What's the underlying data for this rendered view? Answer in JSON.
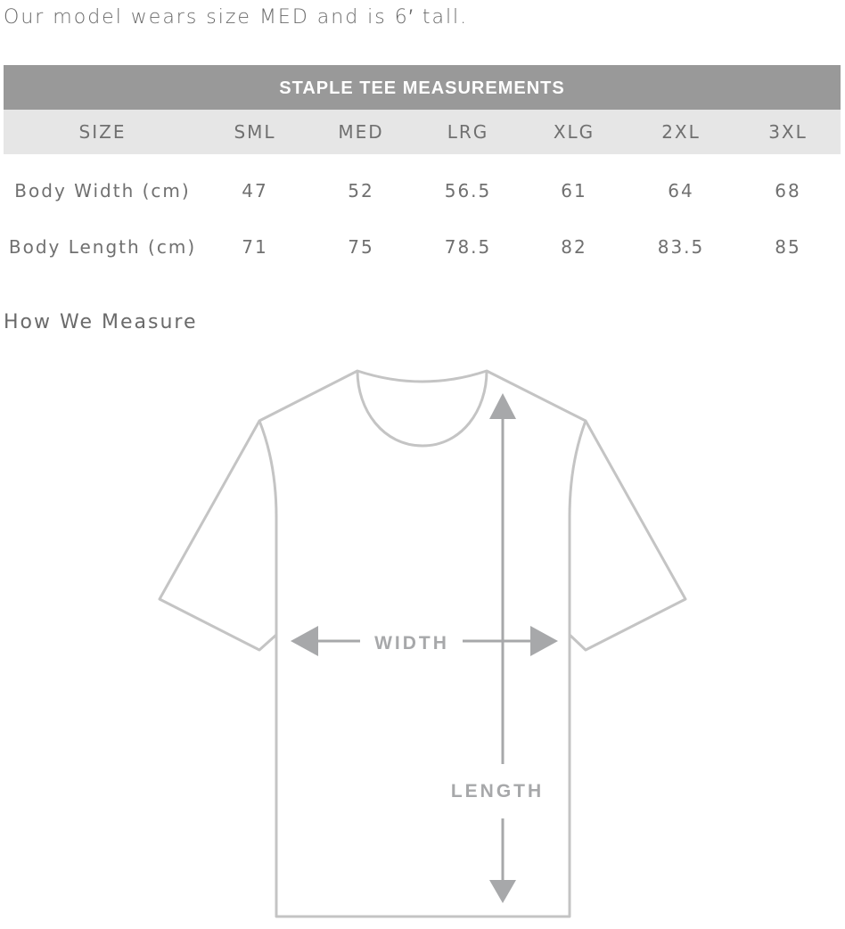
{
  "note": "Our model wears size MED and is 6′ tall.",
  "table": {
    "title": "STAPLE TEE MEASUREMENTS",
    "headers": [
      "SIZE",
      "SML",
      "MED",
      "LRG",
      "XLG",
      "2XL",
      "3XL"
    ],
    "rows": [
      [
        "Body Width (cm)",
        "47",
        "52",
        "56.5",
        "61",
        "64",
        "68"
      ],
      [
        "Body Length (cm)",
        "71",
        "75",
        "78.5",
        "82",
        "83.5",
        "85"
      ]
    ]
  },
  "how_we_measure": "How We Measure",
  "diagram": {
    "width_label": "WIDTH",
    "length_label": "LENGTH"
  },
  "colors": {
    "header_bg": "#999999",
    "subheader_bg": "#e6e6e6",
    "outline": "#c4c4c4",
    "arrow": "#a7a8aa"
  }
}
